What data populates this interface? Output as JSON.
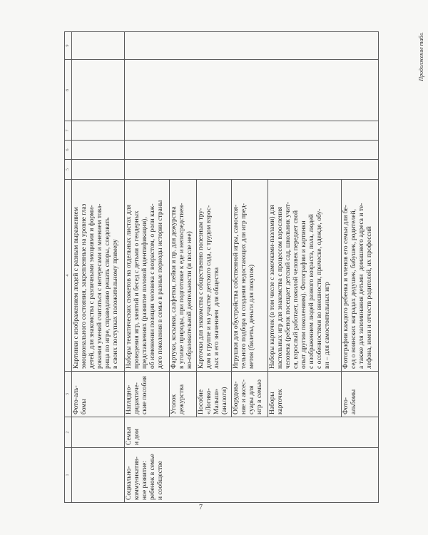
{
  "continuation_label": "Продолжение табл.",
  "page_number": "7",
  "table": {
    "headers": [
      "1",
      "2",
      "3",
      "4",
      "5",
      "6",
      "7",
      "8",
      "9"
    ],
    "rows": [
      {
        "c1": "",
        "c2": "",
        "c3": "Фото-аль-\nбомы",
        "c4": "Картинки с изображением людей с разным выражением\nэмоционального состояния, закрепленные на уровне глаз\nдетей, для знакомства с различными эмоциями и форми-\nрования умений считаться с интересами и мнением това-\nрища по игре, справедливо решать споры, следовать\nв своих поступках положительному примеру"
      },
      {
        "c1": "Социально-\nкоммуникатив-\nное развитие:\nребенок в семье\nи сообществе",
        "c2": "Семья\nи дом",
        "c3": "Наглядно-\nдидактиче-\nские пособия",
        "c4": "Наборы тематических сюжетов на отдельных листах для\nпроведения игр, занятий и бесед с детьми о гендерных\nпредставлениях (развитие половой идентификации),\nоб изменении позиции человека с возрастом, о роли каж-\nдого поколения в семье в разные периоды истории страны"
      },
      {
        "c3": "Уголок\nдежурства",
        "c4": "Фартуки, косынки, салфетки, лейки и пр. для дежурства\nв уголке природы, при подготовке к еде и непосредствен-\nно-образовательной деятельности (и после нее)"
      },
      {
        "c3": "Пособие\n«Логико-\nМалыш»\n(аналоги)",
        "c4": "Карточки для знакомства с общественно полезным тру-\nдом в группе и на участке детского сада, с трудом взрос-\nлых и его значением  для общества"
      },
      {
        "c3": "Оборудова-\nние и аксес-\nсуары для\nигр в семью",
        "c4": "Игрушки для обустройства собственной игры, самостоя-\nтельного подбора и создания недостающих для игр пред-\nметов (билеты, деньги для покупок)"
      },
      {
        "c3": "Наборы\nкарточек",
        "c4": "Наборы карточек (в том числе с замочками-пазлами) для\nнастольных игр для знакомства с процессом взросления\nчеловека (ребенок посещает детский сад, школьник учит-\nся, взрослый работает, пожилой человек передает свой\nопыт другим поколениям). Фотографии и картинки\nс изображением людей разного возраста, пола, людей\nс особенностями во внешности, прическе, одежде, обу-\nви – для самостоятельных игр"
      },
      {
        "c3": "Фото-\nальбомы",
        "c4": "Фотографии каждого ребенка и членов его семьи для бе-\nсед о воинских наградах дедушек, бабушек, родителей,\nа также для запоминания детьми  домашнего адреса и те-\nлефона, имен и отчеств родителей, их профессий"
      }
    ]
  }
}
